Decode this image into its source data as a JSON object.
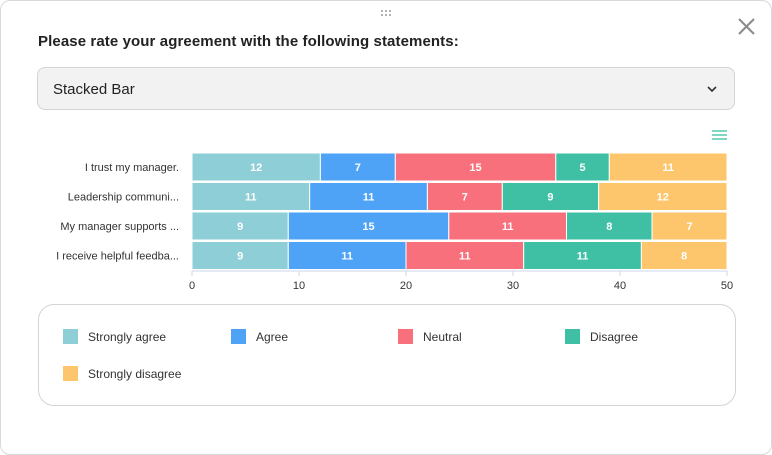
{
  "header": {
    "title": "Please rate your agreement with the following statements:"
  },
  "chart_selector": {
    "selected": "Stacked Bar"
  },
  "chart_data": {
    "type": "bar",
    "orientation": "horizontal",
    "stacked": true,
    "categories": [
      "I trust my manager.",
      "Leadership communi...",
      "My manager supports ...",
      "I receive helpful feedba..."
    ],
    "series": [
      {
        "name": "Strongly agree",
        "color": "#8ecfd7",
        "values": [
          12,
          11,
          9,
          9
        ]
      },
      {
        "name": "Agree",
        "color": "#4ea3f7",
        "values": [
          7,
          11,
          15,
          11
        ]
      },
      {
        "name": "Neutral",
        "color": "#f7707c",
        "values": [
          15,
          7,
          11,
          11
        ]
      },
      {
        "name": "Disagree",
        "color": "#3fc0a5",
        "values": [
          5,
          9,
          8,
          11
        ]
      },
      {
        "name": "Strongly disagree",
        "color": "#fdc66c",
        "values": [
          11,
          12,
          7,
          8
        ]
      }
    ],
    "xlim": [
      0,
      50
    ],
    "xticks": [
      "0",
      "10",
      "20",
      "30",
      "40",
      "50"
    ],
    "grid": false,
    "legend_position": "bottom"
  },
  "icons": {
    "close": "close-icon",
    "dropdown": "chevron-down-icon",
    "menu": "hamburger-menu-icon",
    "drag": "drag-handle-icon"
  }
}
